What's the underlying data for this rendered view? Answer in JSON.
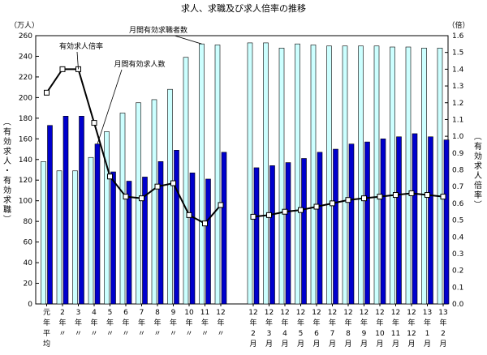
{
  "chart_data": {
    "type": "bar",
    "title": "求人、求職及び求人倍率の推移",
    "left_unit": "（万人）",
    "right_unit": "（倍）",
    "ylabel_left": "（有効求人・有効求職）",
    "ylabel_right": "（有効求人倍率）",
    "ylim_left": [
      0,
      260
    ],
    "yticks_left": [
      0,
      20,
      40,
      60,
      80,
      100,
      120,
      140,
      160,
      180,
      200,
      220,
      240,
      260
    ],
    "ylim_right": [
      0.0,
      1.6
    ],
    "yticks_right": [
      "0.0",
      "0.1",
      "0.2",
      "0.3",
      "0.4",
      "0.5",
      "0.6",
      "0.7",
      "0.8",
      "0.9",
      "1.0",
      "1.1",
      "1.2",
      "1.3",
      "1.4",
      "1.5",
      "1.6"
    ],
    "categories": [
      [
        "元",
        "年",
        "平",
        "均"
      ],
      [
        "2",
        "年",
        "〃"
      ],
      [
        "3",
        "年",
        "〃"
      ],
      [
        "4",
        "年",
        "〃"
      ],
      [
        "5",
        "年",
        "〃"
      ],
      [
        "6",
        "年",
        "〃"
      ],
      [
        "7",
        "年",
        "〃"
      ],
      [
        "8",
        "年",
        "〃"
      ],
      [
        "9",
        "年",
        "〃"
      ],
      [
        "10",
        "年",
        "〃"
      ],
      [
        "11",
        "年",
        "〃"
      ],
      [
        "12",
        "年",
        "〃"
      ],
      [
        "12",
        "年",
        "2",
        "月"
      ],
      [
        "12",
        "年",
        "3",
        "月"
      ],
      [
        "12",
        "年",
        "4",
        "月"
      ],
      [
        "12",
        "年",
        "5",
        "月"
      ],
      [
        "12",
        "年",
        "6",
        "月"
      ],
      [
        "12",
        "年",
        "7",
        "月"
      ],
      [
        "12",
        "年",
        "8",
        "月"
      ],
      [
        "12",
        "年",
        "9",
        "月"
      ],
      [
        "12",
        "年",
        "10",
        "月"
      ],
      [
        "12",
        "年",
        "11",
        "月"
      ],
      [
        "12",
        "年",
        "12",
        "月"
      ],
      [
        "13",
        "年",
        "1",
        "月"
      ],
      [
        "13",
        "年",
        "2",
        "月"
      ]
    ],
    "series": [
      {
        "name": "月間有効求職者数",
        "type": "bar",
        "axis": "left",
        "color": "#ccffff",
        "values": [
          138,
          129,
          129,
          142,
          167,
          185,
          195,
          198,
          208,
          239,
          252,
          251,
          253,
          253,
          248,
          252,
          251,
          250,
          250,
          250,
          250,
          249,
          249,
          248,
          248
        ]
      },
      {
        "name": "月間有効求人数",
        "type": "bar",
        "axis": "left",
        "color": "#0000cc",
        "values": [
          173,
          182,
          182,
          155,
          128,
          119,
          123,
          138,
          149,
          127,
          121,
          147,
          132,
          134,
          137,
          141,
          147,
          150,
          155,
          157,
          160,
          162,
          165,
          162,
          159
        ]
      },
      {
        "name": "有効求人倍率",
        "type": "line",
        "axis": "right",
        "color": "#000000",
        "values": [
          1.26,
          1.4,
          1.4,
          1.08,
          0.76,
          0.64,
          0.63,
          0.7,
          0.72,
          0.53,
          0.48,
          0.59,
          0.52,
          0.53,
          0.55,
          0.56,
          0.58,
          0.6,
          0.62,
          0.63,
          0.64,
          0.65,
          0.66,
          0.65,
          0.64
        ]
      }
    ],
    "annotations": [
      {
        "text": "有効求人倍率",
        "series": "有効求人倍率",
        "index": 2
      },
      {
        "text": "月間有効求人数",
        "series": "月間有効求人数",
        "index": 3
      },
      {
        "text": "月間有効求職者数",
        "series": "月間有効求職者数",
        "index": 10
      }
    ],
    "legend_placement": "inline annotations",
    "grid": false
  }
}
